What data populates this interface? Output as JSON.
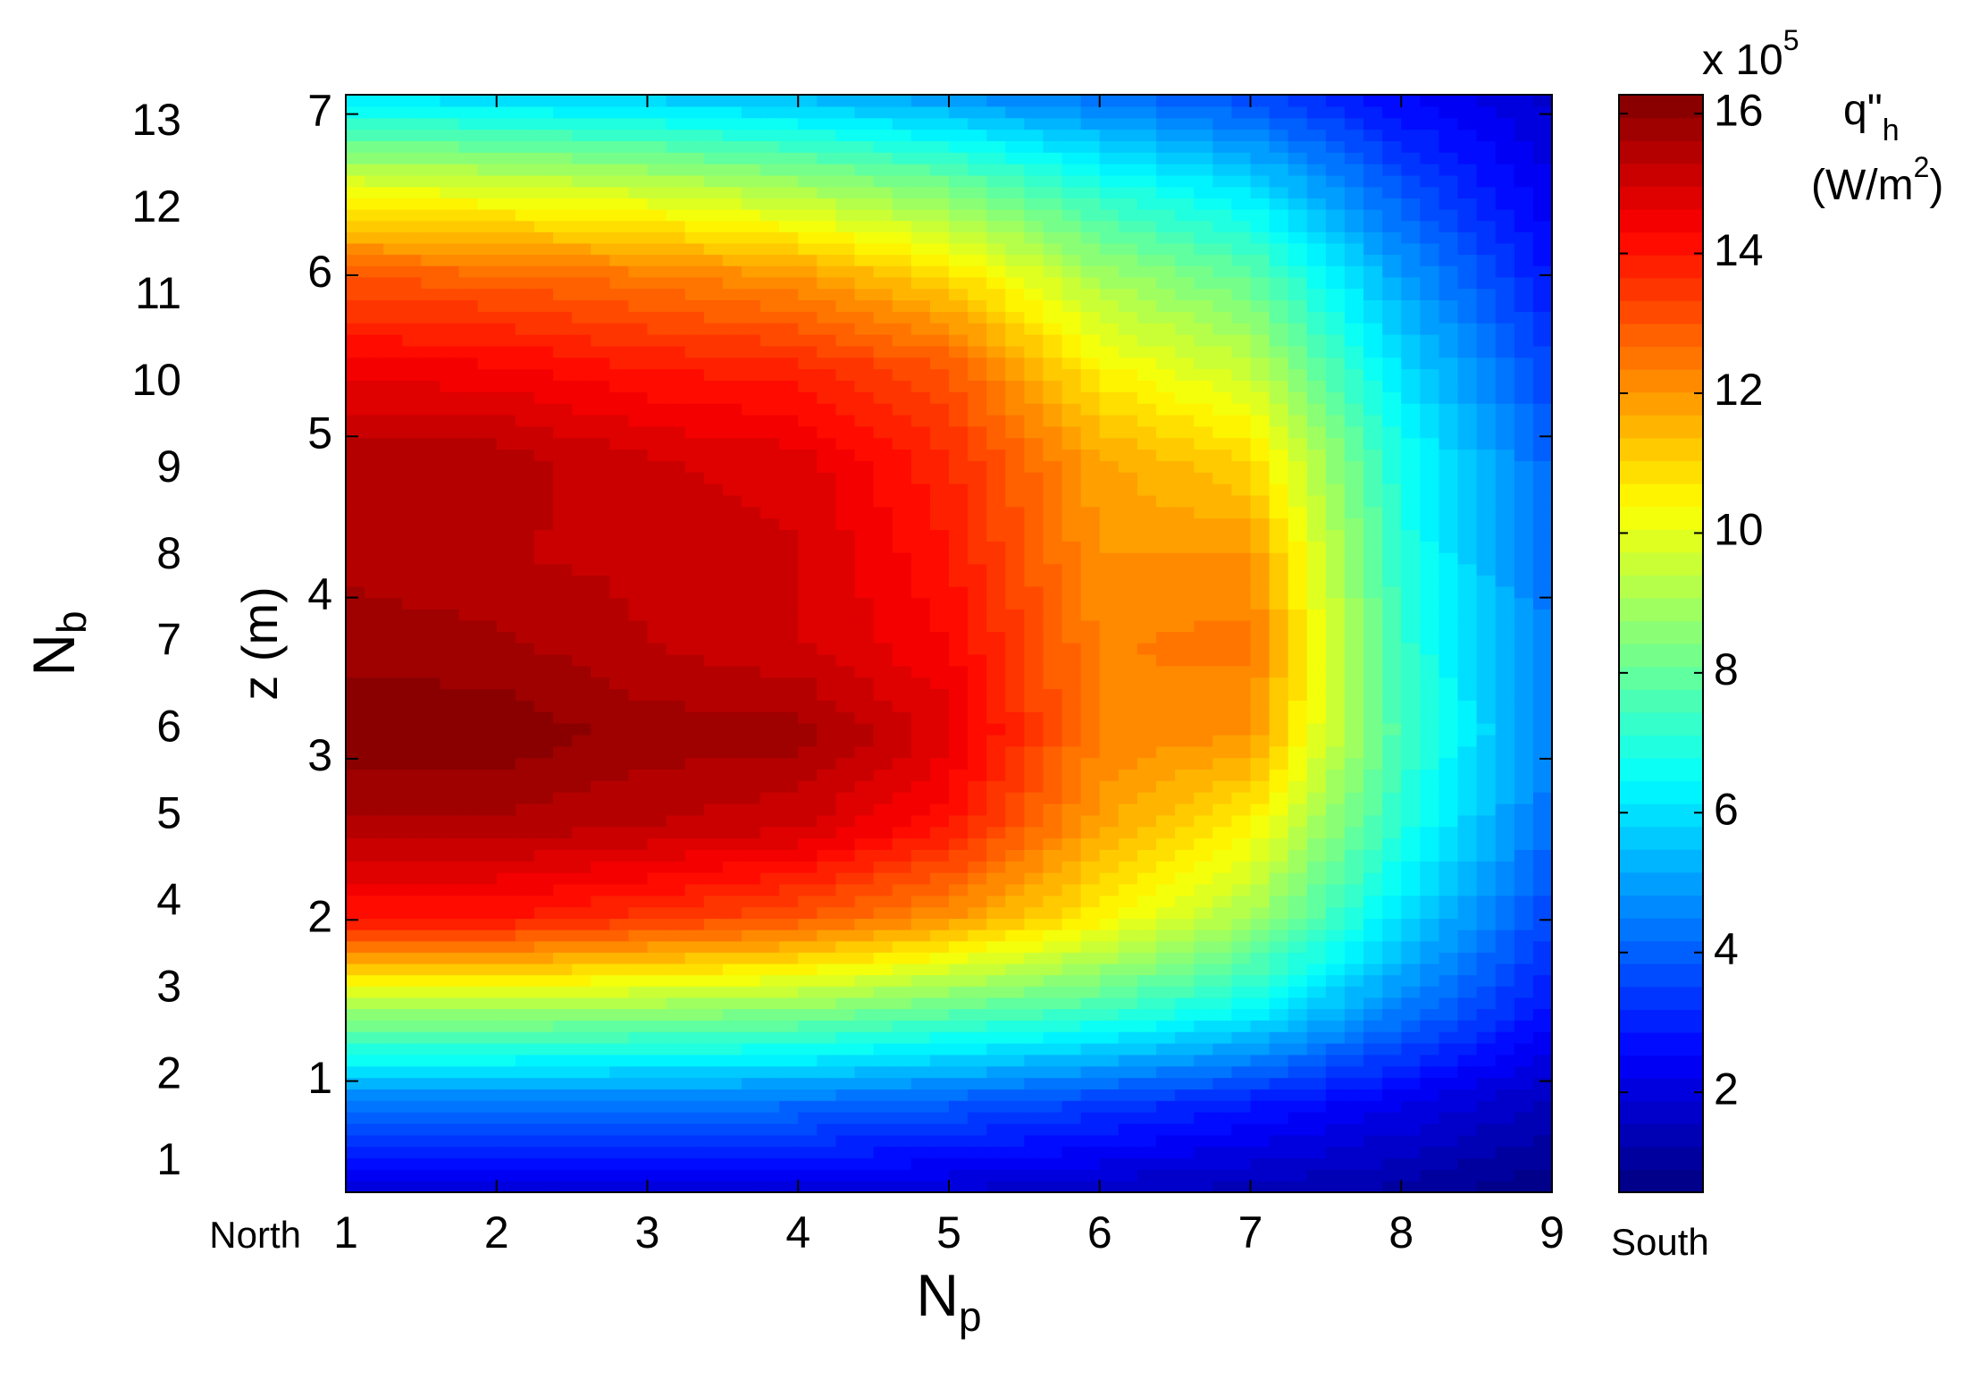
{
  "chart_data": {
    "type": "contour",
    "x_label": "N",
    "x_label_sub": "p",
    "y_label": "z (m)",
    "y2_label": "N",
    "y2_label_sub": "b",
    "x_left_note": "North",
    "x_right_note": "South",
    "colorbar_multiplier": "x 10",
    "colorbar_exponent": "5",
    "colorbar_title": "q\"",
    "colorbar_title_sub": "h",
    "colorbar_unit": "(W/m",
    "colorbar_unit_sup": "2",
    "colorbar_unit_end": ")",
    "colormap": "jet",
    "x": [
      1,
      2,
      3,
      4,
      5,
      6,
      7,
      8,
      9
    ],
    "y": [
      0.31,
      0.88,
      1.45,
      2.01,
      2.58,
      3.15,
      3.72,
      4.28,
      4.85,
      5.42,
      5.99,
      6.55,
      7.12
    ],
    "z": [
      [
        2,
        2,
        2,
        1.9,
        1.8,
        1.6,
        1.4,
        1.1,
        0.6
      ],
      [
        4.5,
        4.5,
        4.4,
        4.3,
        4,
        3.5,
        3,
        2.3,
        1.5
      ],
      [
        9,
        9,
        8.8,
        8.6,
        8,
        7.5,
        6.5,
        4.5,
        2.8
      ],
      [
        14,
        14,
        13.5,
        13,
        12,
        10.5,
        9,
        6,
        3.5
      ],
      [
        15.5,
        15.5,
        15.3,
        15,
        14,
        11.8,
        10.5,
        7,
        4.2
      ],
      [
        16.2,
        16.2,
        15.8,
        15.8,
        14.8,
        12.3,
        12,
        7.5,
        4.5
      ],
      [
        15.8,
        15.7,
        15.3,
        15,
        14.3,
        12.3,
        12.5,
        7.3,
        4.4
      ],
      [
        15.5,
        15.3,
        15.2,
        15,
        14,
        12,
        12,
        7,
        4.2
      ],
      [
        15.5,
        15.5,
        15,
        14.8,
        13.7,
        11.8,
        11,
        6.8,
        4
      ],
      [
        14.5,
        14.4,
        14,
        13.8,
        13,
        10.5,
        9.5,
        6,
        3.5
      ],
      [
        13,
        12.8,
        12.5,
        12,
        11,
        9,
        8,
        5,
        2.8
      ],
      [
        10,
        9.8,
        9.5,
        9,
        8.3,
        7,
        6,
        3.8,
        2.2
      ],
      [
        6,
        5.8,
        5.6,
        5.3,
        4.8,
        4.2,
        3.6,
        2.5,
        1.8
      ]
    ],
    "xlim": [
      1,
      9
    ],
    "xticks": [
      1,
      2,
      3,
      4,
      5,
      6,
      7,
      8,
      9
    ],
    "ylim": [
      0.31,
      7.12
    ],
    "yticks": [
      1,
      2,
      3,
      4,
      5,
      6,
      7
    ],
    "y2lim": [
      0.66,
      13.33
    ],
    "y2ticks": [
      1,
      2,
      3,
      4,
      5,
      6,
      7,
      8,
      9,
      10,
      11,
      12,
      13
    ],
    "clim": [
      0.57,
      16.27
    ],
    "cticks": [
      2,
      4,
      6,
      8,
      10,
      12,
      14,
      16
    ]
  }
}
